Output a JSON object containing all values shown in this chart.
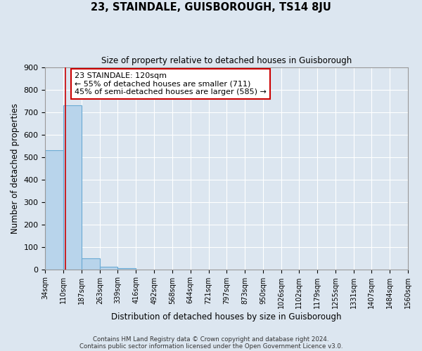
{
  "title": "23, STAINDALE, GUISBOROUGH, TS14 8JU",
  "subtitle": "Size of property relative to detached houses in Guisborough",
  "xlabel": "Distribution of detached houses by size in Guisborough",
  "ylabel": "Number of detached properties",
  "bar_values": [
    530,
    730,
    50,
    12,
    6,
    0,
    0,
    0,
    0,
    0,
    0,
    0,
    0,
    0,
    0,
    0,
    0,
    0,
    0,
    0
  ],
  "bin_labels": [
    "34sqm",
    "110sqm",
    "187sqm",
    "263sqm",
    "339sqm",
    "416sqm",
    "492sqm",
    "568sqm",
    "644sqm",
    "721sqm",
    "797sqm",
    "873sqm",
    "950sqm",
    "1026sqm",
    "1102sqm",
    "1179sqm",
    "1255sqm",
    "1331sqm",
    "1407sqm",
    "1484sqm",
    "1560sqm"
  ],
  "bin_edges": [
    34,
    110,
    187,
    263,
    339,
    416,
    492,
    568,
    644,
    721,
    797,
    873,
    950,
    1026,
    1102,
    1179,
    1255,
    1331,
    1407,
    1484,
    1560
  ],
  "bar_color": "#b8d4eb",
  "bar_edge_color": "#6aaad4",
  "property_line_x": 120,
  "property_line_color": "#cc0000",
  "ylim": [
    0,
    900
  ],
  "yticks": [
    0,
    100,
    200,
    300,
    400,
    500,
    600,
    700,
    800,
    900
  ],
  "annotation_title": "23 STAINDALE: 120sqm",
  "annotation_line1": "← 55% of detached houses are smaller (711)",
  "annotation_line2": "45% of semi-detached houses are larger (585) →",
  "footer_line1": "Contains HM Land Registry data © Crown copyright and database right 2024.",
  "footer_line2": "Contains public sector information licensed under the Open Government Licence v3.0.",
  "background_color": "#dce6f0",
  "plot_bg_color": "#dce6f0",
  "figsize": [
    6.0,
    5.0
  ],
  "dpi": 100
}
